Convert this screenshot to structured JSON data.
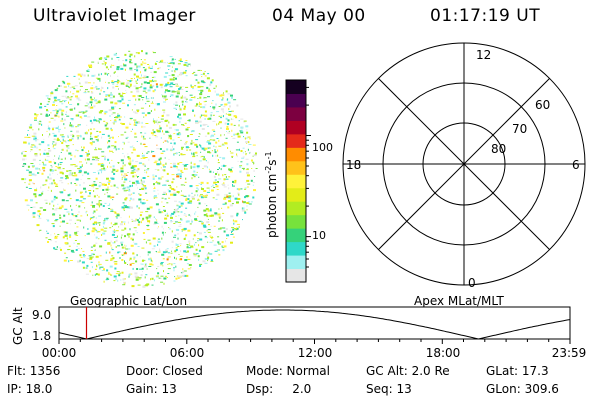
{
  "header": {
    "title": "Ultraviolet Imager",
    "date": "04 May 00",
    "time": "01:17:19 UT"
  },
  "colorbar": {
    "unit_label": "photon cm",
    "unit_sup1": "-2",
    "unit_mid": "s",
    "unit_sup2": "-1",
    "ticks": [
      "100",
      "10"
    ]
  },
  "polar_plot": {
    "mlt_labels": {
      "top": "12",
      "bottom": "0",
      "left": "18",
      "right": "6"
    },
    "lat_labels": [
      "60",
      "70",
      "80"
    ]
  },
  "timeline": {
    "left_label": "Geographic Lat/Lon",
    "right_label": "Apex MLat/MLT",
    "y_axis_label": "GC Alt",
    "y_ticks": [
      "9.0",
      "1.8"
    ],
    "x_ticks": [
      "00:00",
      "06:00",
      "12:00",
      "18:00",
      "23:59"
    ],
    "marker_time_hours": 1.29
  },
  "info": {
    "row1": [
      {
        "key": "flt",
        "text": "Flt: 1356"
      },
      {
        "key": "door",
        "text": "Door: Closed"
      },
      {
        "key": "mode",
        "text": "Mode: Normal"
      },
      {
        "key": "gcalt",
        "text": "GC Alt: 2.0 Re"
      },
      {
        "key": "glat",
        "text": "GLat: 17.3"
      }
    ],
    "row2": [
      {
        "key": "ip",
        "text": "IP: 18.0"
      },
      {
        "key": "gain",
        "text": "Gain: 13"
      },
      {
        "key": "dsp",
        "text": "Dsp:     2.0"
      },
      {
        "key": "seq",
        "text": "Seq: 13"
      },
      {
        "key": "glon",
        "text": "GLon: 309.6"
      }
    ]
  },
  "colors": {
    "background": "#ffffff",
    "foreground": "#000000",
    "marker": "#cc0000",
    "palette": [
      "#e6e6e6",
      "#9ff0f0",
      "#2fd8c8",
      "#35d27a",
      "#77e23c",
      "#b2ec22",
      "#e3ec18",
      "#fff23a",
      "#ffc21a",
      "#ff8c00",
      "#e42a1a",
      "#b00022",
      "#7c0040",
      "#4a0050",
      "#150020"
    ]
  }
}
